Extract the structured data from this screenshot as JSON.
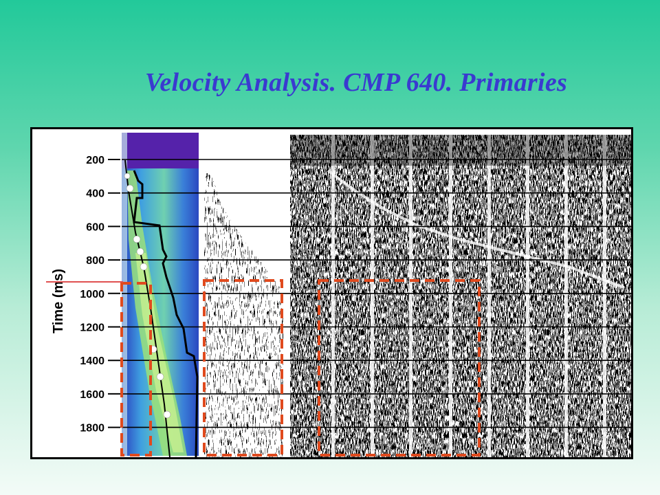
{
  "slide": {
    "title": "Velocity Analysis. CMP 640. Primaries"
  },
  "velocity_panel": {
    "axis_label": "Time (ms)",
    "ticks": [
      "200",
      "400",
      "600",
      "800",
      "1000",
      "1200",
      "1400",
      "1600",
      "1800"
    ]
  },
  "colors": {
    "title": "#3a3ad0",
    "highlight_box": "#e04a1e",
    "reference_line": "#e05050"
  }
}
